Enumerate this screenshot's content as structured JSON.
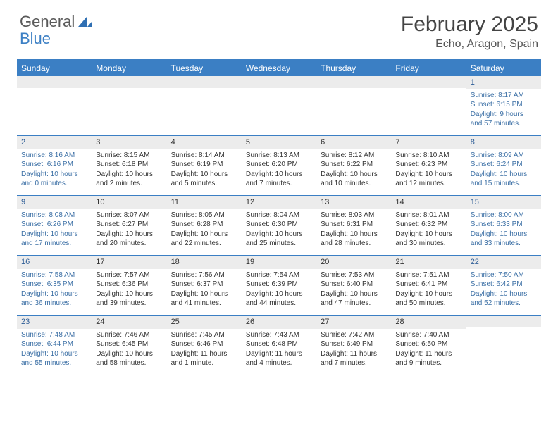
{
  "brand": {
    "part1": "General",
    "part2": "Blue"
  },
  "title": {
    "month": "February 2025",
    "location": "Echo, Aragon, Spain"
  },
  "colors": {
    "accent": "#3b7fc4",
    "weekend_text": "#3b6fa5",
    "header_gray": "#ececec",
    "text": "#333333"
  },
  "layout": {
    "columns": 7,
    "rows": 5
  },
  "weekdays": [
    "Sunday",
    "Monday",
    "Tuesday",
    "Wednesday",
    "Thursday",
    "Friday",
    "Saturday"
  ],
  "weeks": [
    [
      null,
      null,
      null,
      null,
      null,
      null,
      {
        "n": 1,
        "sunrise": "8:17 AM",
        "sunset": "6:15 PM",
        "daylight": "9 hours and 57 minutes."
      }
    ],
    [
      {
        "n": 2,
        "sunrise": "8:16 AM",
        "sunset": "6:16 PM",
        "daylight": "10 hours and 0 minutes."
      },
      {
        "n": 3,
        "sunrise": "8:15 AM",
        "sunset": "6:18 PM",
        "daylight": "10 hours and 2 minutes."
      },
      {
        "n": 4,
        "sunrise": "8:14 AM",
        "sunset": "6:19 PM",
        "daylight": "10 hours and 5 minutes."
      },
      {
        "n": 5,
        "sunrise": "8:13 AM",
        "sunset": "6:20 PM",
        "daylight": "10 hours and 7 minutes."
      },
      {
        "n": 6,
        "sunrise": "8:12 AM",
        "sunset": "6:22 PM",
        "daylight": "10 hours and 10 minutes."
      },
      {
        "n": 7,
        "sunrise": "8:10 AM",
        "sunset": "6:23 PM",
        "daylight": "10 hours and 12 minutes."
      },
      {
        "n": 8,
        "sunrise": "8:09 AM",
        "sunset": "6:24 PM",
        "daylight": "10 hours and 15 minutes."
      }
    ],
    [
      {
        "n": 9,
        "sunrise": "8:08 AM",
        "sunset": "6:26 PM",
        "daylight": "10 hours and 17 minutes."
      },
      {
        "n": 10,
        "sunrise": "8:07 AM",
        "sunset": "6:27 PM",
        "daylight": "10 hours and 20 minutes."
      },
      {
        "n": 11,
        "sunrise": "8:05 AM",
        "sunset": "6:28 PM",
        "daylight": "10 hours and 22 minutes."
      },
      {
        "n": 12,
        "sunrise": "8:04 AM",
        "sunset": "6:30 PM",
        "daylight": "10 hours and 25 minutes."
      },
      {
        "n": 13,
        "sunrise": "8:03 AM",
        "sunset": "6:31 PM",
        "daylight": "10 hours and 28 minutes."
      },
      {
        "n": 14,
        "sunrise": "8:01 AM",
        "sunset": "6:32 PM",
        "daylight": "10 hours and 30 minutes."
      },
      {
        "n": 15,
        "sunrise": "8:00 AM",
        "sunset": "6:33 PM",
        "daylight": "10 hours and 33 minutes."
      }
    ],
    [
      {
        "n": 16,
        "sunrise": "7:58 AM",
        "sunset": "6:35 PM",
        "daylight": "10 hours and 36 minutes."
      },
      {
        "n": 17,
        "sunrise": "7:57 AM",
        "sunset": "6:36 PM",
        "daylight": "10 hours and 39 minutes."
      },
      {
        "n": 18,
        "sunrise": "7:56 AM",
        "sunset": "6:37 PM",
        "daylight": "10 hours and 41 minutes."
      },
      {
        "n": 19,
        "sunrise": "7:54 AM",
        "sunset": "6:39 PM",
        "daylight": "10 hours and 44 minutes."
      },
      {
        "n": 20,
        "sunrise": "7:53 AM",
        "sunset": "6:40 PM",
        "daylight": "10 hours and 47 minutes."
      },
      {
        "n": 21,
        "sunrise": "7:51 AM",
        "sunset": "6:41 PM",
        "daylight": "10 hours and 50 minutes."
      },
      {
        "n": 22,
        "sunrise": "7:50 AM",
        "sunset": "6:42 PM",
        "daylight": "10 hours and 52 minutes."
      }
    ],
    [
      {
        "n": 23,
        "sunrise": "7:48 AM",
        "sunset": "6:44 PM",
        "daylight": "10 hours and 55 minutes."
      },
      {
        "n": 24,
        "sunrise": "7:46 AM",
        "sunset": "6:45 PM",
        "daylight": "10 hours and 58 minutes."
      },
      {
        "n": 25,
        "sunrise": "7:45 AM",
        "sunset": "6:46 PM",
        "daylight": "11 hours and 1 minute."
      },
      {
        "n": 26,
        "sunrise": "7:43 AM",
        "sunset": "6:48 PM",
        "daylight": "11 hours and 4 minutes."
      },
      {
        "n": 27,
        "sunrise": "7:42 AM",
        "sunset": "6:49 PM",
        "daylight": "11 hours and 7 minutes."
      },
      {
        "n": 28,
        "sunrise": "7:40 AM",
        "sunset": "6:50 PM",
        "daylight": "11 hours and 9 minutes."
      },
      null
    ]
  ],
  "labels": {
    "sunrise": "Sunrise:",
    "sunset": "Sunset:",
    "daylight": "Daylight:"
  }
}
